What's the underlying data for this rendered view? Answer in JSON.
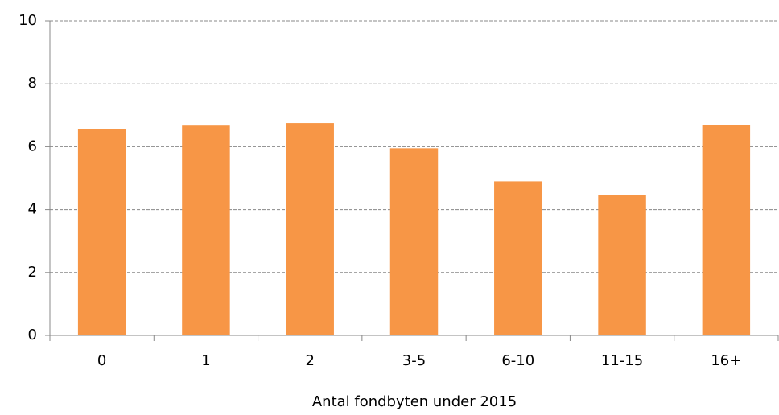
{
  "chart_data": {
    "type": "bar",
    "x_label": "Antal fondbyten under 2015",
    "categories": [
      "0",
      "1",
      "2",
      "3-5",
      "6-10",
      "11-15",
      "16+"
    ],
    "values": [
      6.55,
      6.67,
      6.75,
      5.95,
      4.9,
      4.45,
      6.7
    ],
    "color": "#f79646",
    "ylim": [
      0,
      10
    ],
    "yticks": [
      0,
      2,
      4,
      6,
      8,
      10
    ],
    "grid": true
  }
}
